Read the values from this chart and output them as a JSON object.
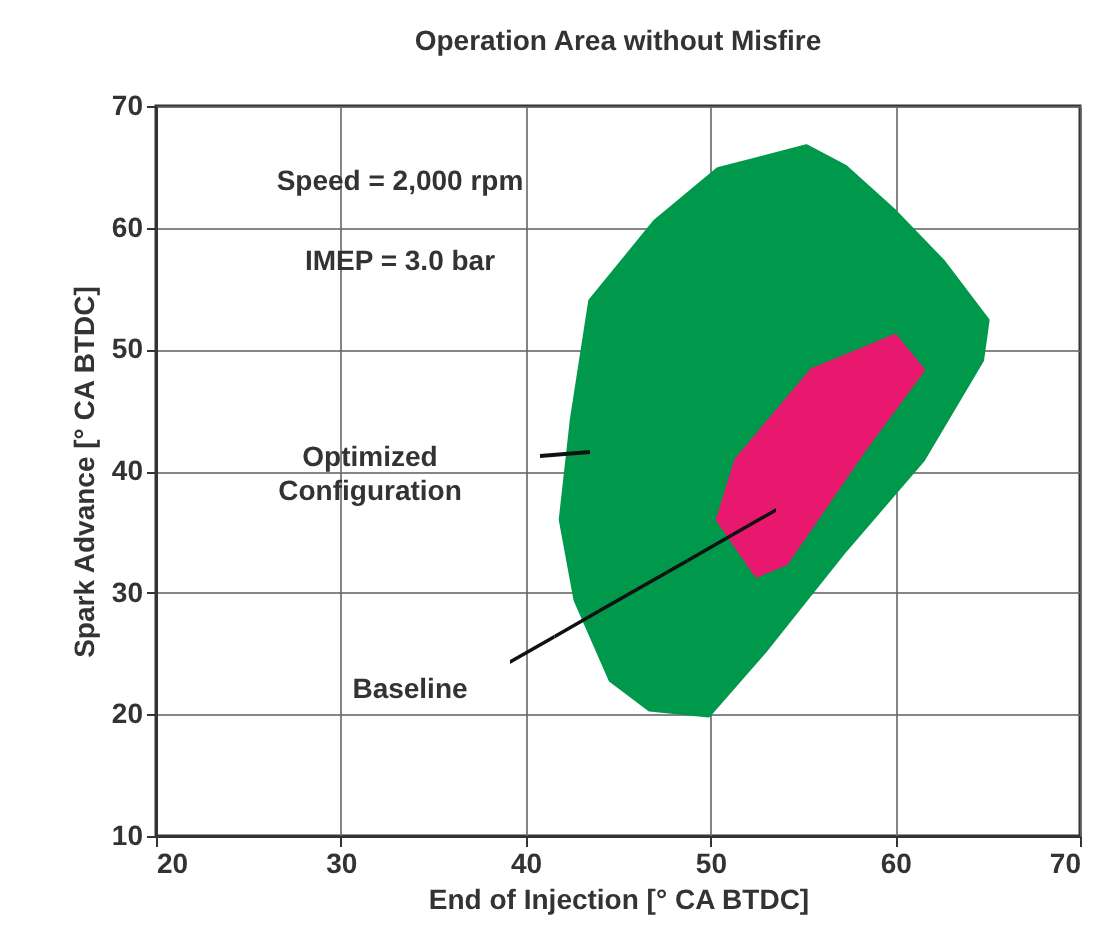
{
  "chart_data": {
    "type": "area",
    "title": "Operation Area without Misfire",
    "xlabel": "End of Injection [° CA BTDC]",
    "ylabel": "Spark Advance [° CA BTDC]",
    "xlim": [
      20,
      70
    ],
    "xticks": [
      20,
      30,
      40,
      50,
      60,
      70
    ],
    "ylim": [
      10,
      70
    ],
    "yticks": [
      10,
      20,
      30,
      40,
      50,
      60,
      70
    ],
    "grid": true,
    "series": [
      {
        "color": "#00994c",
        "x": [
          55.2,
          57.3,
          60,
          62.6,
          65,
          64.7,
          61.5,
          57.3,
          53,
          49.9,
          46.7,
          44.6,
          42.7,
          41.9,
          42.5,
          43.5,
          47,
          50.4
        ],
        "values": [
          66.7,
          65,
          61.3,
          57.2,
          52.4,
          49.1,
          40.9,
          33.5,
          25.3,
          19.9,
          20.4,
          22.8,
          29.4,
          36,
          44.2,
          54,
          60.5,
          64.8
        ]
      },
      {
        "color": "#e8186e",
        "x": [
          60,
          61.5,
          58.3,
          54.1,
          52.5,
          50.4,
          51.4,
          55.5
        ],
        "values": [
          51.1,
          48.3,
          41.7,
          32.4,
          31.4,
          36,
          40.9,
          48.3
        ]
      }
    ],
    "annotations": [
      "Speed = 2,000 rpm",
      "IMEP = 3.0 bar",
      "Optimized Configuration",
      "Baseline"
    ]
  }
}
